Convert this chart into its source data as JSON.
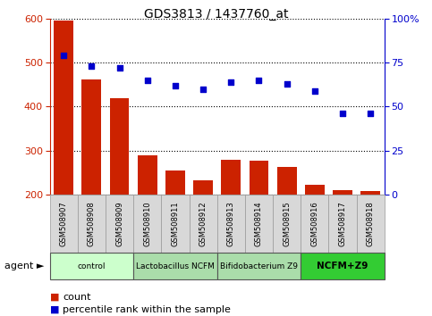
{
  "title": "GDS3813 / 1437760_at",
  "samples": [
    "GSM508907",
    "GSM508908",
    "GSM508909",
    "GSM508910",
    "GSM508911",
    "GSM508912",
    "GSM508913",
    "GSM508914",
    "GSM508915",
    "GSM508916",
    "GSM508917",
    "GSM508918"
  ],
  "counts": [
    597,
    463,
    420,
    290,
    254,
    232,
    278,
    277,
    263,
    222,
    209,
    208
  ],
  "percentiles": [
    79,
    73,
    72,
    65,
    62,
    60,
    64,
    65,
    63,
    59,
    46,
    46
  ],
  "ylim_left": [
    200,
    600
  ],
  "ylim_right": [
    0,
    100
  ],
  "yticks_left": [
    200,
    300,
    400,
    500,
    600
  ],
  "yticks_right": [
    0,
    25,
    50,
    75,
    100
  ],
  "bar_color": "#cc2200",
  "dot_color": "#0000cc",
  "groups": [
    {
      "label": "control",
      "start": 0,
      "end": 3,
      "color": "#ccffcc"
    },
    {
      "label": "Lactobacillus NCFM",
      "start": 3,
      "end": 6,
      "color": "#aaddaa"
    },
    {
      "label": "Bifidobacterium Z9",
      "start": 6,
      "end": 9,
      "color": "#aaddaa"
    },
    {
      "label": "NCFM+Z9",
      "start": 9,
      "end": 12,
      "color": "#33cc33"
    }
  ],
  "agent_label": "agent",
  "legend_count_label": "count",
  "legend_percentile_label": "percentile rank within the sample",
  "background_color": "#ffffff"
}
